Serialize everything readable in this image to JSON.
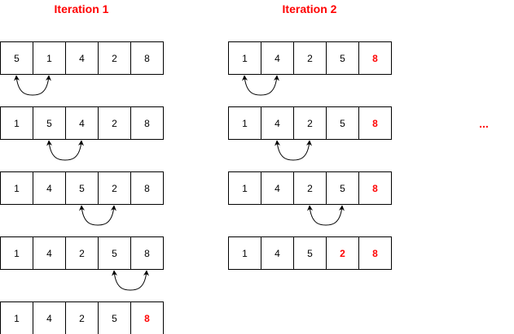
{
  "colors": {
    "highlight": "#ff0000",
    "stroke": "#000000",
    "background": "#ffffff"
  },
  "iterations": [
    {
      "title": "Iteration 1",
      "rows": [
        {
          "values": [
            "5",
            "1",
            "4",
            "2",
            "8"
          ],
          "highlight": [],
          "swap": [
            0,
            1
          ]
        },
        {
          "values": [
            "1",
            "5",
            "4",
            "2",
            "8"
          ],
          "highlight": [],
          "swap": [
            1,
            2
          ]
        },
        {
          "values": [
            "1",
            "4",
            "5",
            "2",
            "8"
          ],
          "highlight": [],
          "swap": [
            2,
            3
          ]
        },
        {
          "values": [
            "1",
            "4",
            "2",
            "5",
            "8"
          ],
          "highlight": [],
          "swap": [
            3,
            4
          ]
        },
        {
          "values": [
            "1",
            "4",
            "2",
            "5",
            "8"
          ],
          "highlight": [
            4
          ],
          "swap": null
        }
      ]
    },
    {
      "title": "Iteration 2",
      "rows": [
        {
          "values": [
            "1",
            "4",
            "2",
            "5",
            "8"
          ],
          "highlight": [
            4
          ],
          "swap": [
            0,
            1
          ]
        },
        {
          "values": [
            "1",
            "4",
            "2",
            "5",
            "8"
          ],
          "highlight": [
            4
          ],
          "swap": [
            1,
            2
          ]
        },
        {
          "values": [
            "1",
            "4",
            "2",
            "5",
            "8"
          ],
          "highlight": [
            4
          ],
          "swap": [
            2,
            3
          ]
        },
        {
          "values": [
            "1",
            "4",
            "5",
            "2",
            "8"
          ],
          "highlight": [
            3,
            4
          ],
          "swap": null
        }
      ]
    }
  ],
  "continuation": "..."
}
